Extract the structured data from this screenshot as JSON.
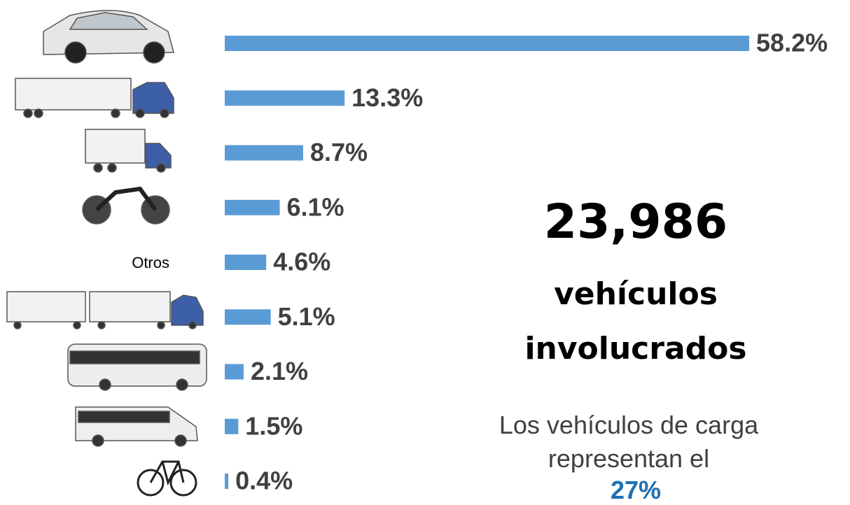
{
  "chart_data": {
    "type": "bar",
    "orientation": "horizontal",
    "categories": [
      null,
      null,
      null,
      null,
      "Otros",
      null,
      null,
      null,
      null
    ],
    "values": [
      58.2,
      13.3,
      8.7,
      6.1,
      4.6,
      5.1,
      2.1,
      1.5,
      0.4
    ],
    "value_labels": [
      "58.2%",
      "13.3%",
      "8.7%",
      "6.1%",
      "4.6%",
      "5.1%",
      "2.1%",
      "1.5%",
      "0.4%"
    ],
    "color": "#5b9bd5",
    "annotations": [
      "23,986",
      "vehículos involucrados",
      "Los vehículos de carga representan el",
      "27%"
    ]
  }
}
